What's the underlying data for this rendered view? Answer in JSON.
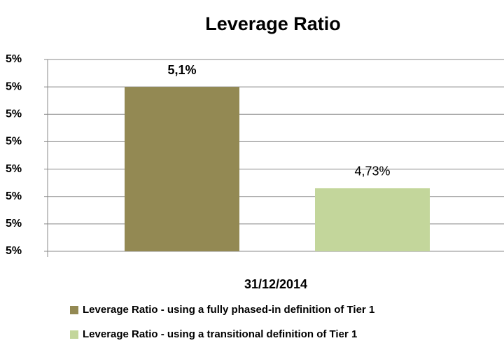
{
  "chart_data": {
    "type": "bar",
    "title": "Leverage Ratio",
    "categories": [
      "31/12/2014"
    ],
    "series": [
      {
        "name": "Leverage Ratio - using a fully phased-in definition of Tier 1",
        "color": "#938953",
        "values": [
          5.1
        ],
        "value_labels": [
          "5,1%"
        ]
      },
      {
        "name": "Leverage Ratio - using a transitional definition of Tier 1",
        "color": "#c3d69b",
        "values": [
          4.73
        ],
        "value_labels": [
          "4,73%"
        ]
      }
    ],
    "ylim": [
      4.5,
      5.2
    ],
    "yticks": [
      {
        "value": 4.5,
        "label": "5%"
      },
      {
        "value": 4.6,
        "label": "5%"
      },
      {
        "value": 4.7,
        "label": "5%"
      },
      {
        "value": 4.8,
        "label": "5%"
      },
      {
        "value": 4.9,
        "label": "5%"
      },
      {
        "value": 5.0,
        "label": "5%"
      },
      {
        "value": 5.1,
        "label": "5%"
      },
      {
        "value": 5.2,
        "label": "5%"
      }
    ],
    "grid": true,
    "legend": "bottom"
  }
}
